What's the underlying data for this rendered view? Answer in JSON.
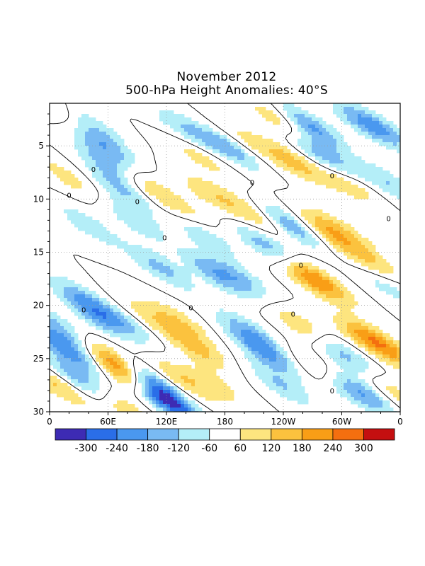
{
  "chart_data": {
    "type": "heatmap",
    "title": "November 2012",
    "subtitle": "500-hPa Height Anomalies: 40°S",
    "x_tick_labels": [
      "0",
      "60E",
      "120E",
      "180",
      "120W",
      "60W",
      "0"
    ],
    "x_ticks_deg": [
      0,
      60,
      120,
      180,
      240,
      300,
      360
    ],
    "xlim": [
      0,
      360
    ],
    "y_tick_labels": [
      "5",
      "10",
      "15",
      "20",
      "25",
      "30"
    ],
    "y_ticks": [
      5,
      10,
      15,
      20,
      25,
      30
    ],
    "ylim": [
      1,
      30
    ],
    "y_inverted": true,
    "grid": "dotted",
    "contour_label": "0",
    "colorbar": {
      "placement": "bottom",
      "boundaries": [
        -360,
        -300,
        -240,
        -180,
        -120,
        -60,
        60,
        120,
        180,
        240,
        300,
        360
      ],
      "labels": [
        "-300",
        "-240",
        "-180",
        "-120",
        "-60",
        "60",
        "120",
        "180",
        "240",
        "300"
      ],
      "colors": [
        "#3d2bb4",
        "#2a6ee8",
        "#4a98ef",
        "#79baf3",
        "#b4eef8",
        "#ffffff",
        "#fde57f",
        "#fbc23e",
        "#f99e16",
        "#f46f0f",
        "#c40f10"
      ]
    },
    "features": [
      {
        "lon": 12,
        "day": 1.8,
        "value": 95
      },
      {
        "lon": 42,
        "day": 3.0,
        "value": -110
      },
      {
        "lon": 55,
        "day": 5.0,
        "value": -150
      },
      {
        "lon": 62,
        "day": 7.0,
        "value": -140
      },
      {
        "lon": 75,
        "day": 9.2,
        "value": -120
      },
      {
        "lon": 95,
        "day": 8.6,
        "value": 110
      },
      {
        "lon": 88,
        "day": 12.0,
        "value": -110
      },
      {
        "lon": 115,
        "day": 16.5,
        "value": -140
      },
      {
        "lon": 40,
        "day": 12.5,
        "value": -100
      },
      {
        "lon": 20,
        "day": 8.0,
        "value": 85
      },
      {
        "lon": 140,
        "day": 3.5,
        "value": -120
      },
      {
        "lon": 155,
        "day": 6.0,
        "value": 90
      },
      {
        "lon": 185,
        "day": 5.2,
        "value": -160
      },
      {
        "lon": 200,
        "day": 4.5,
        "value": 80
      },
      {
        "lon": 165,
        "day": 9.5,
        "value": 100
      },
      {
        "lon": 138,
        "day": 11.0,
        "value": 80
      },
      {
        "lon": 235,
        "day": 2.5,
        "value": 110
      },
      {
        "lon": 250,
        "day": 6.5,
        "value": 140
      },
      {
        "lon": 268,
        "day": 3.2,
        "value": -200
      },
      {
        "lon": 282,
        "day": 6.0,
        "value": -170
      },
      {
        "lon": 305,
        "day": 8.5,
        "value": 110
      },
      {
        "lon": 322,
        "day": 2.8,
        "value": -130
      },
      {
        "lon": 342,
        "day": 3.5,
        "value": -120
      },
      {
        "lon": 348,
        "day": 8.5,
        "value": -120
      },
      {
        "lon": 250,
        "day": 12.5,
        "value": -200
      },
      {
        "lon": 225,
        "day": 14.5,
        "value": -170
      },
      {
        "lon": 210,
        "day": 11.5,
        "value": 100
      },
      {
        "lon": 278,
        "day": 13.0,
        "value": 120
      },
      {
        "lon": 298,
        "day": 13.0,
        "value": 120
      },
      {
        "lon": 330,
        "day": 16.0,
        "value": 130
      },
      {
        "lon": 345,
        "day": 18.0,
        "value": -100
      },
      {
        "lon": 262,
        "day": 17.0,
        "value": 130
      },
      {
        "lon": 280,
        "day": 18.0,
        "value": 140
      },
      {
        "lon": 160,
        "day": 13.5,
        "value": -110
      },
      {
        "lon": 170,
        "day": 17.0,
        "value": -150
      },
      {
        "lon": 197,
        "day": 17.5,
        "value": -110
      },
      {
        "lon": 30,
        "day": 19.0,
        "value": -110
      },
      {
        "lon": 48,
        "day": 21.0,
        "value": -150
      },
      {
        "lon": 75,
        "day": 21.5,
        "value": -120
      },
      {
        "lon": 98,
        "day": 21.0,
        "value": 80
      },
      {
        "lon": 150,
        "day": 24.0,
        "value": 130
      },
      {
        "lon": 132,
        "day": 21.5,
        "value": 110
      },
      {
        "lon": 205,
        "day": 22.5,
        "value": -140
      },
      {
        "lon": 222,
        "day": 24.5,
        "value": -180
      },
      {
        "lon": 238,
        "day": 27.5,
        "value": -120
      },
      {
        "lon": 260,
        "day": 22.0,
        "value": 120
      },
      {
        "lon": 275,
        "day": 26.0,
        "value": 100
      },
      {
        "lon": 300,
        "day": 24.5,
        "value": -150
      },
      {
        "lon": 310,
        "day": 28.0,
        "value": -160
      },
      {
        "lon": 325,
        "day": 23.0,
        "value": 130
      },
      {
        "lon": 345,
        "day": 24.0,
        "value": 150
      },
      {
        "lon": 355,
        "day": 28.5,
        "value": 120
      },
      {
        "lon": 335,
        "day": 28.5,
        "value": -100
      },
      {
        "lon": 18,
        "day": 24.2,
        "value": -220
      },
      {
        "lon": 8,
        "day": 22.0,
        "value": -140
      },
      {
        "lon": 30,
        "day": 27.0,
        "value": -170
      },
      {
        "lon": 10,
        "day": 27.5,
        "value": 140
      },
      {
        "lon": 65,
        "day": 25.0,
        "value": 150
      },
      {
        "lon": 78,
        "day": 26.5,
        "value": 200
      },
      {
        "lon": 100,
        "day": 26.8,
        "value": -180
      },
      {
        "lon": 120,
        "day": 28.9,
        "value": -330
      },
      {
        "lon": 135,
        "day": 27.0,
        "value": 120
      },
      {
        "lon": 75,
        "day": 29.5,
        "value": 110
      },
      {
        "lon": 170,
        "day": 27.5,
        "value": 80
      }
    ]
  }
}
